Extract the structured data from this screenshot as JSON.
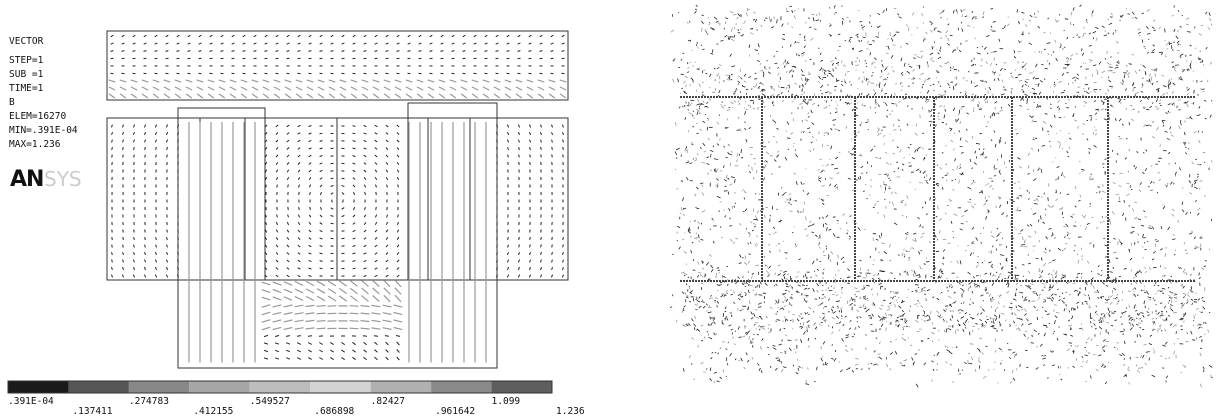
{
  "info": [
    "VECTOR",
    "STEP=1",
    "SUB =1",
    "TIME=1",
    "B",
    "ELEM=16270",
    "MIN=.391E-04",
    "MAX=1.236"
  ],
  "logo": {
    "bold": "AN",
    "light": "SYS"
  },
  "legend": {
    "upper": [
      ".391E-04",
      ".274783",
      ".549527",
      ".82427",
      "1.099"
    ],
    "lower": [
      ".137411",
      ".412155",
      ".686898",
      ".961642",
      "1.236"
    ]
  }
}
